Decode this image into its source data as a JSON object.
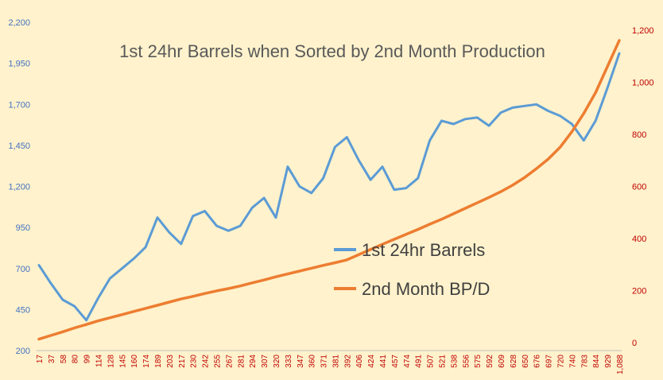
{
  "chart_data": {
    "type": "line",
    "title": "1st 24hr Barrels when Sorted by 2nd Month Production",
    "xlabel": "",
    "ylabel": "",
    "y2label": "",
    "ylim": [
      200,
      2200
    ],
    "y2lim": [
      -30,
      1230
    ],
    "yticks": [
      200,
      450,
      700,
      950,
      1200,
      1450,
      1700,
      1950,
      2200
    ],
    "yticklabels": [
      "200",
      "450",
      "700",
      "950",
      "1,200",
      "1,450",
      "1,700",
      "1,950",
      "2,200"
    ],
    "y2ticks": [
      0,
      200,
      400,
      600,
      800,
      1000,
      1200
    ],
    "y2ticklabels": [
      "0",
      "200",
      "400",
      "600",
      "800",
      "1,000",
      "1,200"
    ],
    "categories": [
      "17",
      "37",
      "58",
      "80",
      "99",
      "114",
      "128",
      "145",
      "160",
      "174",
      "189",
      "203",
      "217",
      "230",
      "242",
      "255",
      "267",
      "281",
      "294",
      "307",
      "320",
      "333",
      "347",
      "360",
      "371",
      "381",
      "392",
      "406",
      "424",
      "441",
      "457",
      "474",
      "491",
      "507",
      "521",
      "538",
      "556",
      "575",
      "592",
      "609",
      "628",
      "650",
      "676",
      "697",
      "720",
      "740",
      "783",
      "844",
      "929",
      "1,088"
    ],
    "grid": false,
    "legend": "center-right",
    "colors": {
      "barrels": "#5B9BD5",
      "bpd": "#ED7D31",
      "left_axis": "#4472C4",
      "right_axis": "#C00000"
    },
    "series": [
      {
        "name": "1st 24hr Barrels",
        "axis": "left",
        "values": [
          720,
          610,
          510,
          470,
          385,
          520,
          640,
          700,
          760,
          830,
          1010,
          920,
          850,
          1020,
          1050,
          960,
          930,
          960,
          1070,
          1130,
          1010,
          1320,
          1200,
          1160,
          1250,
          1440,
          1500,
          1360,
          1240,
          1320,
          1180,
          1190,
          1250,
          1480,
          1600,
          1580,
          1610,
          1620,
          1570,
          1650,
          1680,
          1690,
          1700,
          1660,
          1630,
          1580,
          1480,
          1600,
          1800,
          2010
        ]
      },
      {
        "name": "2nd Month BP/D",
        "axis": "right",
        "values": [
          14,
          28,
          42,
          57,
          70,
          84,
          96,
          108,
          120,
          132,
          144,
          156,
          168,
          178,
          189,
          199,
          208,
          218,
          230,
          241,
          253,
          264,
          275,
          286,
          297,
          307,
          318,
          338,
          358,
          378,
          397,
          416,
          435,
          455,
          474,
          495,
          516,
          537,
          558,
          580,
          605,
          634,
          668,
          705,
          750,
          810,
          880,
          960,
          1060,
          1160
        ]
      }
    ]
  }
}
